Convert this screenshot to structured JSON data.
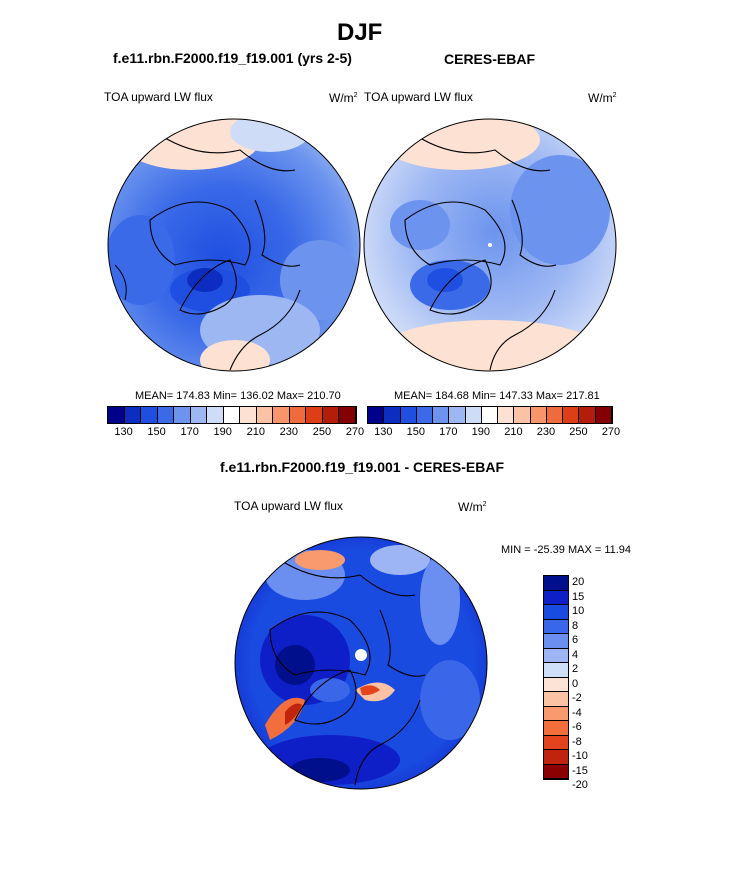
{
  "page_title": "DJF",
  "colors": {
    "seq_palette": [
      "#00008b",
      "#0c2dbf",
      "#1f4fe0",
      "#3a6ae8",
      "#6c94ee",
      "#9db7f3",
      "#cfdcf8",
      "#ffffff",
      "#fde1d2",
      "#fbc3a6",
      "#f7956b",
      "#ef6a3c",
      "#dd3d17",
      "#b31d0a",
      "#850000"
    ],
    "diff_palette": [
      "#000f8c",
      "#0f1fc8",
      "#1a4be0",
      "#3a67ea",
      "#6b8ff0",
      "#9db5f5",
      "#cfdff8",
      "#fde3d5",
      "#fbc2a4",
      "#f8996e",
      "#f26f3d",
      "#e4441d",
      "#c0240f",
      "#8b0000"
    ]
  },
  "chart_data": [
    {
      "type": "heatmap",
      "panel": "model",
      "title": "f.e11.rbn.F2000.f19_f19.001 (yrs 2-5)",
      "left_label": "TOA upward LW flux",
      "units_base": "W/m",
      "units_exp": "2",
      "stats": "MEAN= 174.83  Min= 136.02  Max= 210.70",
      "mean": 174.83,
      "min": 136.02,
      "max": 210.7,
      "colorbar_levels": [
        130,
        140,
        150,
        160,
        170,
        180,
        190,
        200,
        210,
        220,
        230,
        240,
        250,
        260,
        270
      ],
      "colorbar_labels": [
        "130",
        "150",
        "170",
        "190",
        "210",
        "230",
        "250",
        "270"
      ]
    },
    {
      "type": "heatmap",
      "panel": "obs",
      "title": "CERES-EBAF",
      "left_label": "TOA upward LW flux",
      "units_base": "W/m",
      "units_exp": "2",
      "stats": "MEAN= 184.68  Min= 147.33  Max= 217.81",
      "mean": 184.68,
      "min": 147.33,
      "max": 217.81,
      "colorbar_levels": [
        130,
        140,
        150,
        160,
        170,
        180,
        190,
        200,
        210,
        220,
        230,
        240,
        250,
        260,
        270
      ],
      "colorbar_labels": [
        "130",
        "150",
        "170",
        "190",
        "210",
        "230",
        "250",
        "270"
      ]
    },
    {
      "type": "heatmap",
      "panel": "difference",
      "title": "f.e11.rbn.F2000.f19_f19.001 - CERES-EBAF",
      "left_label": "TOA upward LW flux",
      "units_base": "W/m",
      "units_exp": "2",
      "stats": "MIN = -25.39 MAX =  11.94",
      "min": -25.39,
      "max": 11.94,
      "colorbar_levels": [
        "20",
        "15",
        "10",
        "8",
        "6",
        "4",
        "2",
        "0",
        "-2",
        "-4",
        "-6",
        "-8",
        "-10",
        "-15",
        "-20"
      ]
    }
  ]
}
